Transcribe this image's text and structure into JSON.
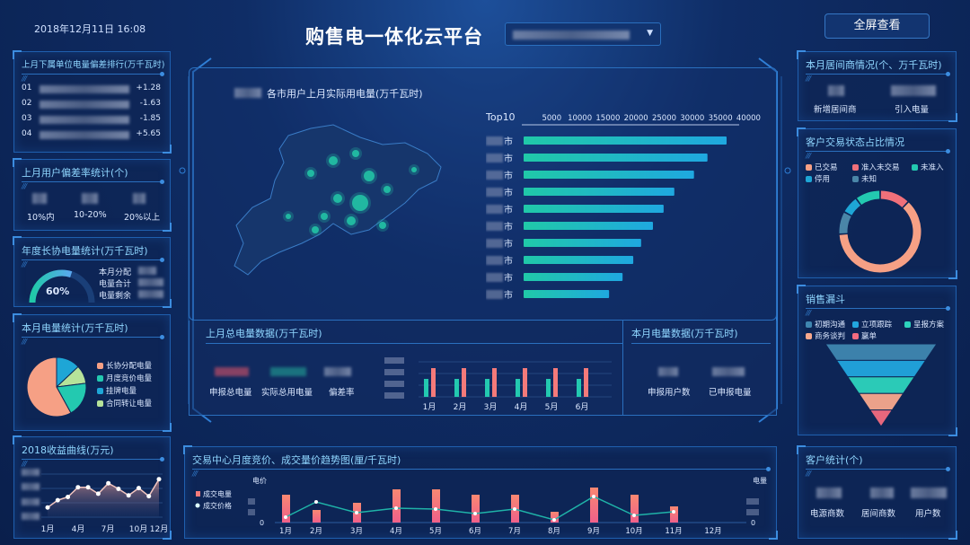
{
  "header": {
    "datetime": "2018年12月11日  16:08",
    "title": "购售电一体化云平台",
    "fullscreen_label": "全屏查看"
  },
  "left": {
    "ranking": {
      "title": "上月下属单位电量偏差排行(万千瓦时)",
      "rows": [
        {
          "rank": "01",
          "value": "+1.28"
        },
        {
          "rank": "02",
          "value": "-1.63"
        },
        {
          "rank": "03",
          "value": "-1.85"
        },
        {
          "rank": "04",
          "value": "+5.65"
        }
      ]
    },
    "deviation": {
      "title": "上月用户偏差率统计(个)",
      "labels": [
        "10%内",
        "10-20%",
        "20%以上"
      ]
    },
    "annual": {
      "title": "年度长协电量统计(万千瓦时)",
      "gauge_percent": 60,
      "gauge_text": "60%",
      "labels": [
        "本月分配",
        "电量合计",
        "电量剩余"
      ]
    },
    "monthly": {
      "title": "本月电量统计(万千瓦时)",
      "slices": [
        {
          "name": "挂牌电量",
          "value": 13,
          "color": "#1ea6d6"
        },
        {
          "name": "合同转让电量",
          "value": 10,
          "color": "#b6e39a"
        },
        {
          "name": "月度竞价电量",
          "value": 19,
          "color": "#23c9b0"
        },
        {
          "name": "长协分配电量",
          "value": 58,
          "color": "#f6a085"
        }
      ],
      "legend": [
        "长协分配电量",
        "月度竞价电量",
        "挂牌电量",
        "合同转让电量"
      ],
      "legend_colors": [
        "#f6a085",
        "#23c9b0",
        "#1ea6d6",
        "#b6e39a"
      ]
    },
    "income": {
      "title": "2018收益曲线(万元)",
      "x_labels": [
        "1月",
        "4月",
        "7月",
        "10月",
        "12月"
      ],
      "values": [
        12,
        21,
        25,
        37,
        37,
        29,
        42,
        35,
        27,
        36,
        26,
        47
      ]
    }
  },
  "center": {
    "map_title": "各市用户上月实际用电量(万千瓦时)",
    "top10": {
      "label": "Top10",
      "ticks": [
        "5000",
        "10000",
        "15000",
        "20000",
        "25000",
        "30000",
        "35000",
        "40000"
      ],
      "city_suffix": "市",
      "values": [
        36100,
        32700,
        30300,
        26800,
        24900,
        23000,
        20900,
        19500,
        17600,
        15200
      ]
    },
    "last_month": {
      "title": "上月总电量数据(万千瓦时)",
      "labels": [
        "申报总电量",
        "实际总用电量",
        "偏差率"
      ],
      "months": [
        "1月",
        "2月",
        "3月",
        "4月",
        "5月",
        "6月"
      ],
      "series": [
        {
          "color": "#23c9b0",
          "values": [
            20,
            20,
            20,
            20,
            20,
            20
          ]
        },
        {
          "color": "#f47a7a",
          "values": [
            32,
            32,
            32,
            32,
            32,
            32
          ]
        }
      ]
    },
    "this_month": {
      "title": "本月电量数据(万千瓦时)",
      "labels": [
        "申报用户数",
        "已申报电量"
      ]
    }
  },
  "bottom": {
    "title": "交易中心月度竞价、成交量价趋势图(厘/千瓦时)",
    "left_axis": "电价",
    "right_axis": "电量",
    "zero": "0",
    "legend": [
      "成交电量",
      "成交价格"
    ],
    "months": [
      "1月",
      "2月",
      "3月",
      "4月",
      "5月",
      "6月",
      "7月",
      "8月",
      "9月",
      "10月",
      "11月",
      "12月"
    ],
    "volume": [
      31,
      14,
      22,
      37,
      37,
      31,
      31,
      12,
      39,
      31,
      18
    ],
    "price": [
      6,
      23,
      11,
      16,
      15,
      10,
      15,
      3,
      29,
      8,
      12
    ]
  },
  "right": {
    "broker": {
      "title": "本月居间商情况(个、万千瓦时)",
      "labels": [
        "新增居间商",
        "引入电量"
      ]
    },
    "status": {
      "title": "客户交易状态占比情况",
      "segments": [
        {
          "name": "准入未交易",
          "value": 12,
          "color": "#f0707a"
        },
        {
          "name": "已交易",
          "value": 62,
          "color": "#f6a085"
        },
        {
          "name": "未知",
          "value": 9,
          "color": "#4a86a8"
        },
        {
          "name": "停用",
          "value": 7,
          "color": "#1ea6d6"
        },
        {
          "name": "未准入",
          "value": 10,
          "color": "#23c9b0"
        }
      ],
      "legend": [
        "已交易",
        "准入未交易",
        "未准入",
        "停用",
        "未知"
      ],
      "legend_colors": [
        "#f6a085",
        "#f0707a",
        "#23c9b0",
        "#1ea6d6",
        "#4a86a8"
      ]
    },
    "funnel": {
      "title": "销售漏斗",
      "legend": [
        "初期沟通",
        "立项跟踪",
        "呈报方案",
        "商务谈判",
        "赢单"
      ],
      "colors": [
        "#3f86b0",
        "#22a6de",
        "#2dd3bd",
        "#f7a88d",
        "#f26b80"
      ]
    },
    "customers": {
      "title": "客户统计(个)",
      "labels": [
        "电源商数",
        "居间商数",
        "用户数"
      ]
    }
  },
  "colors": {
    "accent": "#8fd6ff",
    "panel_border": "#1f5fae",
    "bar_gradient_start": "#20c9a8",
    "bar_gradient_end": "#1fa8e0"
  }
}
